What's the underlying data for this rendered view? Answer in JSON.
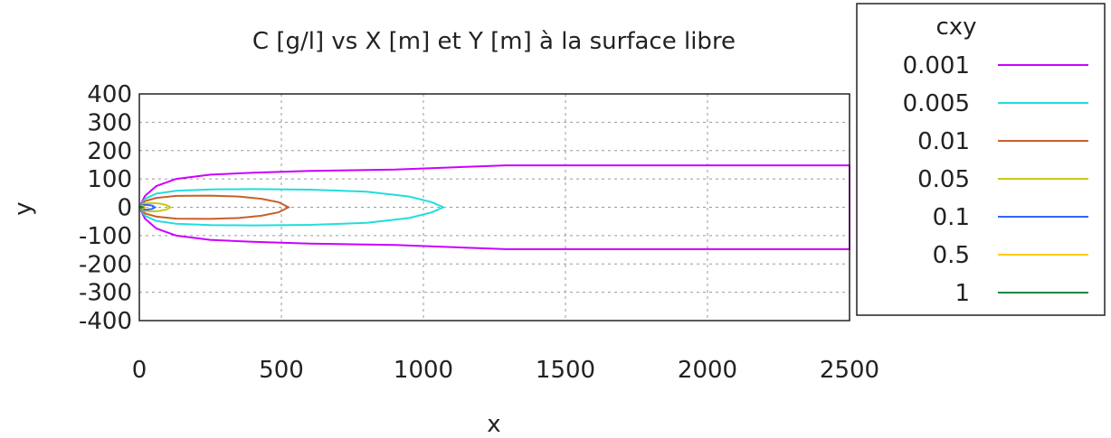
{
  "chart_data": {
    "type": "line",
    "title": "C [g/l] vs X [m] et Y [m] à la surface libre",
    "xlabel": "x",
    "ylabel": "y",
    "xlim": [
      0,
      2500
    ],
    "ylim": [
      -400,
      400
    ],
    "xticks": [
      "0",
      "500",
      "1000",
      "1500",
      "2000",
      "2500"
    ],
    "yticks": [
      "400",
      "300",
      "200",
      "100",
      "0",
      "-100",
      "-200",
      "-300",
      "-400"
    ],
    "grid": true,
    "legend": {
      "title": "cxy",
      "placement": "outside-right"
    },
    "series": [
      {
        "name": "0.001",
        "color": "#cc00ff",
        "x": [
          0,
          20,
          60,
          130,
          250,
          400,
          600,
          900,
          1290,
          1700,
          2100,
          2500
        ],
        "y": [
          0,
          40,
          75,
          100,
          115,
          122,
          128,
          133,
          148,
          148,
          148,
          148
        ]
      },
      {
        "name": "0.005",
        "color": "#22dddd",
        "x": [
          0,
          20,
          60,
          130,
          250,
          400,
          600,
          800,
          950,
          1030,
          1070
        ],
        "y": [
          0,
          30,
          48,
          58,
          63,
          64,
          62,
          55,
          38,
          18,
          0
        ]
      },
      {
        "name": "0.01",
        "color": "#c8602a",
        "x": [
          0,
          20,
          60,
          130,
          250,
          350,
          430,
          490,
          525
        ],
        "y": [
          0,
          22,
          33,
          40,
          41,
          38,
          30,
          18,
          0
        ]
      },
      {
        "name": "0.05",
        "color": "#c8c81e",
        "x": [
          0,
          15,
          40,
          70,
          95,
          110
        ],
        "y": [
          0,
          12,
          15,
          13,
          8,
          0
        ]
      },
      {
        "name": "0.1",
        "color": "#3366ff",
        "x": [
          0,
          10,
          25,
          45,
          55
        ],
        "y": [
          0,
          7,
          9,
          6,
          0
        ]
      },
      {
        "name": "0.5",
        "color": "#ffcc00",
        "x": [
          0,
          5,
          12,
          20
        ],
        "y": [
          0,
          4,
          4,
          0
        ]
      },
      {
        "name": "1",
        "color": "#118844",
        "x": [
          0,
          4,
          8,
          12
        ],
        "y": [
          0,
          2,
          2,
          0
        ]
      }
    ]
  }
}
